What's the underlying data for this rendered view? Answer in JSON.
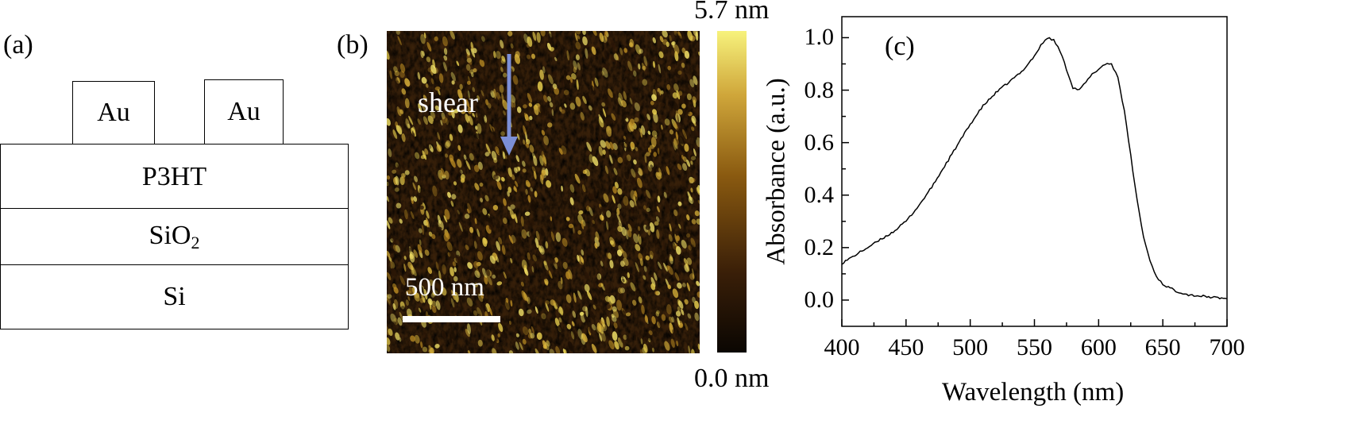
{
  "panel_a": {
    "label": "(a)",
    "electrode_left": "Au",
    "electrode_right": "Au",
    "layer_polymer": "P3HT",
    "layer_oxide_main": "SiO",
    "layer_oxide_sub": "2",
    "layer_substrate": "Si"
  },
  "panel_b": {
    "label": "(b)",
    "shear_label": "shear",
    "scale_bar_label": "500 nm",
    "colorbar_max": "5.7 nm",
    "colorbar_min": "0.0 nm",
    "colors": {
      "low": "#0a0602",
      "mid": "#8a5a10",
      "high": "#f5f07a",
      "arrow": "#7c8fd6"
    }
  },
  "chart_data": {
    "type": "line",
    "panel_label": "(c)",
    "title": "",
    "xlabel": "Wavelength (nm)",
    "ylabel": "Absorbance (a.u.)",
    "xlim": [
      400,
      700
    ],
    "ylim": [
      -0.1,
      1.08
    ],
    "xticks": [
      "400",
      "450",
      "500",
      "550",
      "600",
      "650",
      "700"
    ],
    "yticks": [
      "0.0",
      "0.2",
      "0.4",
      "0.6",
      "0.8",
      "1.0"
    ],
    "grid": false,
    "series": [
      {
        "x": [
          400,
          410,
          420,
          430,
          440,
          450,
          460,
          470,
          480,
          490,
          500,
          510,
          520,
          530,
          540,
          550,
          555,
          560,
          565,
          570,
          575,
          580,
          585,
          590,
          595,
          600,
          605,
          610,
          615,
          620,
          625,
          630,
          635,
          640,
          645,
          650,
          660,
          670,
          680,
          690,
          700
        ],
        "y": [
          0.14,
          0.17,
          0.2,
          0.23,
          0.26,
          0.3,
          0.36,
          0.43,
          0.51,
          0.59,
          0.67,
          0.74,
          0.79,
          0.83,
          0.87,
          0.93,
          0.97,
          1.0,
          0.99,
          0.95,
          0.88,
          0.81,
          0.8,
          0.83,
          0.86,
          0.88,
          0.9,
          0.9,
          0.85,
          0.72,
          0.55,
          0.38,
          0.24,
          0.15,
          0.09,
          0.06,
          0.035,
          0.02,
          0.015,
          0.01,
          0.005
        ]
      }
    ]
  }
}
